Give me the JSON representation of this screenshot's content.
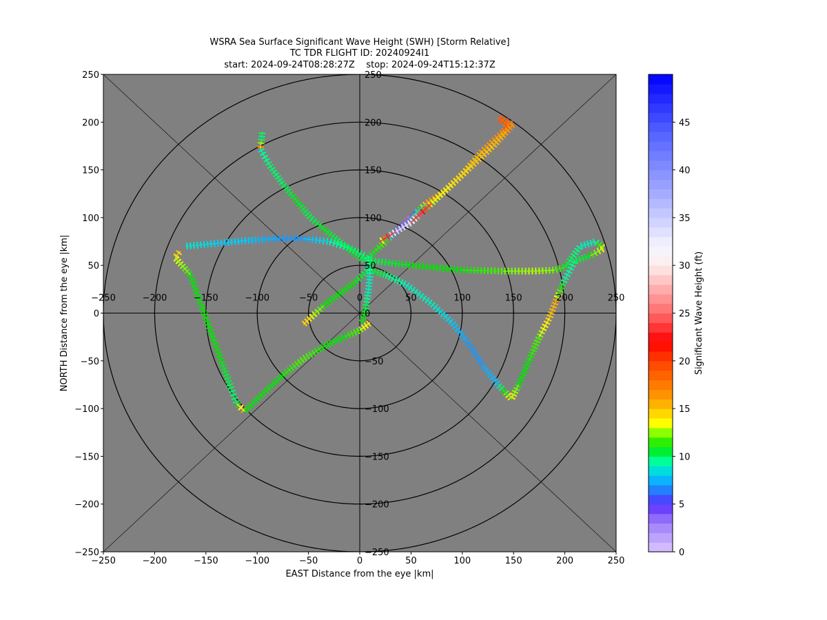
{
  "chart_data": {
    "type": "scatter",
    "title_lines": [
      "WSRA Sea Surface Significant Wave Height (SWH) [Storm Relative]",
      "TC TDR FLIGHT ID: 20240924I1",
      "start: 2024-09-24T08:28:27Z    stop: 2024-09-24T15:12:37Z"
    ],
    "xlabel": "EAST Distance from the eye |km|",
    "ylabel": "NORTH Distance from the eye |km|",
    "xlim": [
      -250,
      250
    ],
    "ylim": [
      -250,
      250
    ],
    "xticks": [
      -250,
      -200,
      -150,
      -100,
      -50,
      0,
      50,
      100,
      150,
      200,
      250
    ],
    "yticks": [
      -250,
      -200,
      -150,
      -100,
      -50,
      0,
      50,
      100,
      150,
      200,
      250
    ],
    "range_rings_km": [
      50,
      100,
      150,
      200,
      250
    ],
    "background_color": "#808080",
    "colorbar": {
      "label": "Significant Wave Height (ft)",
      "min": 0,
      "max": 50,
      "ticks": [
        0,
        5,
        10,
        15,
        20,
        25,
        30,
        35,
        40,
        45
      ]
    },
    "tracks": [
      {
        "points": [
          [
            -95,
            190
          ],
          [
            -96,
            180
          ],
          [
            -97,
            172
          ]
        ],
        "swh": [
          10,
          10,
          19
        ]
      },
      {
        "points": [
          [
            -97,
            172
          ],
          [
            -88,
            155
          ],
          [
            -75,
            135
          ],
          [
            -62,
            118
          ],
          [
            -48,
            100
          ],
          [
            -35,
            88
          ],
          [
            -20,
            75
          ],
          [
            -5,
            62
          ],
          [
            5,
            55
          ]
        ],
        "swh": [
          9,
          10,
          10,
          11,
          10,
          11,
          10,
          11,
          10
        ]
      },
      {
        "points": [
          [
            5,
            55
          ],
          [
            15,
            65
          ],
          [
            25,
            75
          ],
          [
            35,
            85
          ],
          [
            50,
            100
          ],
          [
            65,
            115
          ],
          [
            80,
            125
          ],
          [
            100,
            145
          ],
          [
            120,
            170
          ],
          [
            140,
            190
          ],
          [
            145,
            200
          ]
        ],
        "swh": [
          10,
          11,
          12,
          5,
          3,
          16,
          17,
          14,
          16,
          17,
          20
        ]
      },
      {
        "points": [
          [
            145,
            200
          ],
          [
            135,
            205
          ],
          [
            143,
            198
          ],
          [
            150,
            198
          ],
          [
            143,
            190
          ],
          [
            130,
            175
          ],
          [
            110,
            155
          ],
          [
            90,
            135
          ],
          [
            70,
            115
          ],
          [
            50,
            95
          ],
          [
            35,
            85
          ],
          [
            20,
            75
          ]
        ],
        "swh": [
          20,
          19,
          18,
          17,
          16,
          15,
          15,
          14,
          13,
          33,
          35,
          11
        ]
      },
      {
        "points": [
          [
            -170,
            70
          ],
          [
            -140,
            73
          ],
          [
            -110,
            76
          ],
          [
            -80,
            78
          ],
          [
            -55,
            78
          ],
          [
            -30,
            75
          ],
          [
            -10,
            68
          ],
          [
            5,
            60
          ]
        ],
        "swh": [
          9,
          8,
          8,
          7,
          7,
          9,
          10,
          10
        ]
      },
      {
        "points": [
          [
            -175,
            65
          ],
          [
            -180,
            58
          ],
          [
            -165,
            40
          ],
          [
            -155,
            10
          ],
          [
            -145,
            -20
          ],
          [
            -135,
            -50
          ],
          [
            -125,
            -80
          ],
          [
            -120,
            -95
          ],
          [
            -112,
            -103
          ]
        ],
        "swh": [
          15,
          14,
          11,
          11,
          11,
          11,
          10,
          10,
          17
        ]
      },
      {
        "points": [
          [
            -112,
            -103
          ],
          [
            -95,
            -85
          ],
          [
            -75,
            -65
          ],
          [
            -55,
            -48
          ],
          [
            -35,
            -35
          ],
          [
            -15,
            -25
          ],
          [
            0,
            -18
          ],
          [
            10,
            -10
          ]
        ],
        "swh": [
          11,
          11,
          11,
          12,
          11,
          11,
          12,
          15
        ]
      },
      {
        "points": [
          [
            10,
            55
          ],
          [
            50,
            50
          ],
          [
            100,
            45
          ],
          [
            140,
            44
          ],
          [
            170,
            44
          ],
          [
            190,
            45
          ],
          [
            200,
            48
          ]
        ],
        "swh": [
          10,
          11,
          11,
          12,
          13,
          12,
          11
        ]
      },
      {
        "points": [
          [
            200,
            48
          ],
          [
            215,
            70
          ],
          [
            230,
            75
          ],
          [
            238,
            68
          ],
          [
            225,
            60
          ],
          [
            210,
            55
          ],
          [
            200,
            35
          ],
          [
            192,
            15
          ]
        ],
        "swh": [
          11,
          9,
          9,
          14,
          11,
          10,
          9,
          14
        ]
      },
      {
        "points": [
          [
            192,
            15
          ],
          [
            185,
            -5
          ],
          [
            175,
            -25
          ],
          [
            165,
            -50
          ],
          [
            155,
            -75
          ],
          [
            148,
            -90
          ]
        ],
        "swh": [
          16,
          15,
          12,
          11,
          11,
          14
        ]
      },
      {
        "points": [
          [
            148,
            -90
          ],
          [
            135,
            -75
          ],
          [
            120,
            -55
          ],
          [
            105,
            -30
          ],
          [
            90,
            -10
          ],
          [
            70,
            10
          ],
          [
            45,
            30
          ],
          [
            25,
            40
          ],
          [
            10,
            45
          ]
        ],
        "swh": [
          15,
          8,
          7,
          7,
          8,
          9,
          9,
          10,
          11
        ]
      },
      {
        "points": [
          [
            -55,
            -12
          ],
          [
            -48,
            -5
          ],
          [
            -35,
            8
          ],
          [
            -20,
            20
          ],
          [
            -5,
            32
          ],
          [
            8,
            45
          ],
          [
            12,
            55
          ]
        ],
        "swh": [
          15,
          14,
          11,
          11,
          11,
          10,
          11
        ]
      },
      {
        "points": [
          [
            8,
            60
          ],
          [
            10,
            40
          ],
          [
            8,
            20
          ],
          [
            5,
            0
          ],
          [
            2,
            -10
          ]
        ],
        "swh": [
          10,
          9,
          9,
          11,
          11
        ]
      }
    ]
  }
}
